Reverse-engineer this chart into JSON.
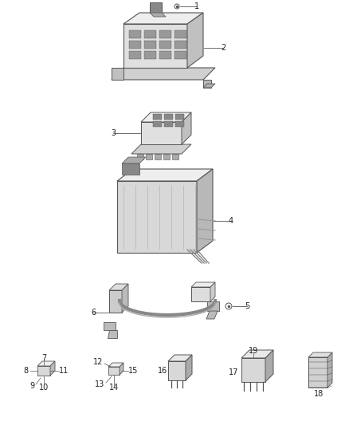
{
  "title": "",
  "bg_color": "#ffffff",
  "line_color": "#555555",
  "text_color": "#222222",
  "fig_width": 4.38,
  "fig_height": 5.33,
  "dpi": 100,
  "parts": {
    "labels": [
      "1",
      "2",
      "3",
      "4",
      "5",
      "6",
      "7",
      "8",
      "9",
      "10",
      "11",
      "12",
      "13",
      "14",
      "15",
      "16",
      "17",
      "18",
      "19"
    ]
  }
}
